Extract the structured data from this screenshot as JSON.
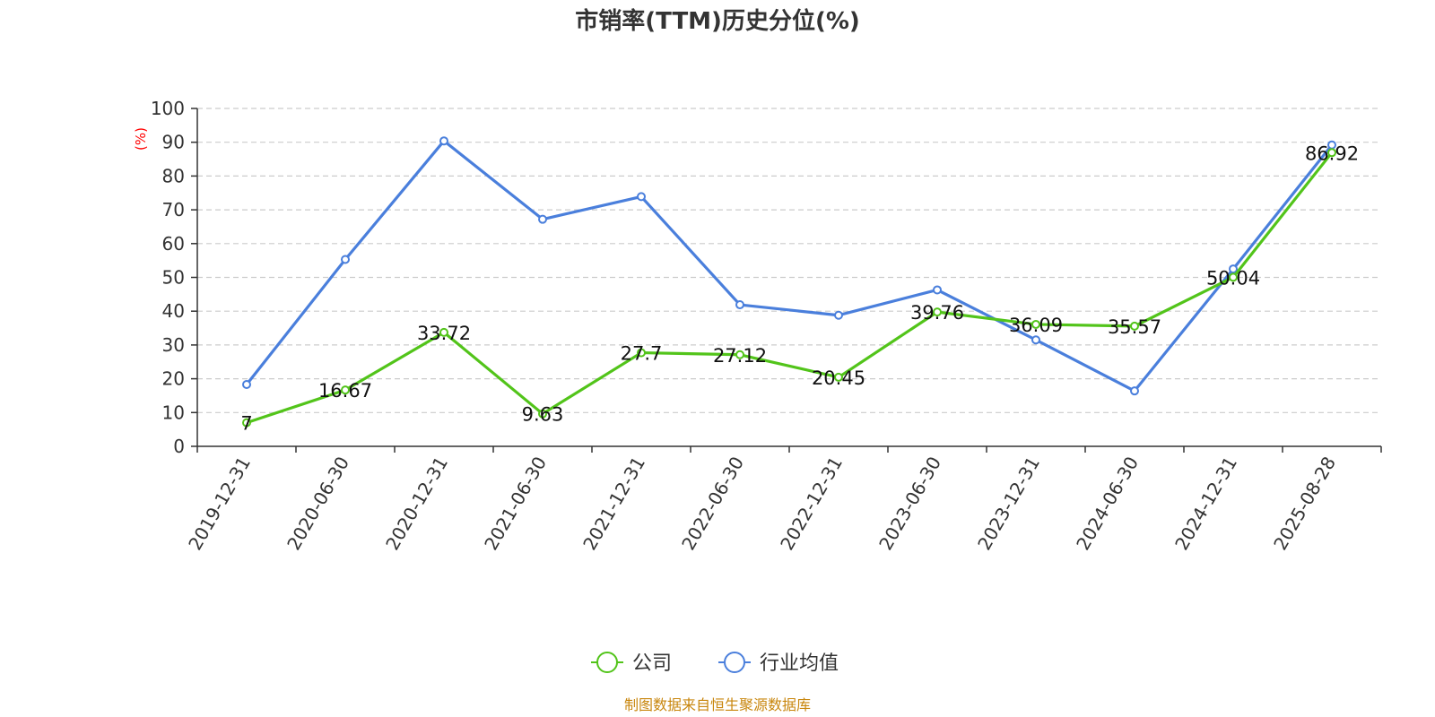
{
  "chart_data": {
    "type": "line",
    "title": "市销率(TTM)历史分位(%)",
    "ylabel": "(%)",
    "xlabel": "",
    "ylim": [
      0,
      100
    ],
    "y_ticks": [
      "0",
      "10",
      "20",
      "30",
      "40",
      "50",
      "60",
      "70",
      "80",
      "90",
      "100"
    ],
    "grid": true,
    "legend_position": "bottom-center",
    "categories": [
      "2019-12-31",
      "2020-06-30",
      "2020-12-31",
      "2021-06-30",
      "2021-12-31",
      "2022-06-30",
      "2022-12-31",
      "2023-06-30",
      "2023-12-31",
      "2024-06-30",
      "2024-12-31",
      "2025-08-28"
    ],
    "series": [
      {
        "name": "公司",
        "color": "#52c41a",
        "values": [
          7,
          16.67,
          33.72,
          9.63,
          27.7,
          27.12,
          20.45,
          39.76,
          36.09,
          35.57,
          50.04,
          86.92
        ],
        "labels": [
          "7",
          "16.67",
          "33.72",
          "9.63",
          "27.7",
          "27.12",
          "20.45",
          "39.76",
          "36.09",
          "35.57",
          "50.04",
          "86.92"
        ]
      },
      {
        "name": "行业均值",
        "color": "#4a7fdc",
        "values": [
          18.3,
          55.3,
          90.4,
          67.2,
          73.9,
          41.9,
          38.8,
          46.3,
          31.5,
          16.4,
          52.5,
          89.2
        ]
      }
    ],
    "source": "制图数据来自恒生聚源数据库"
  }
}
